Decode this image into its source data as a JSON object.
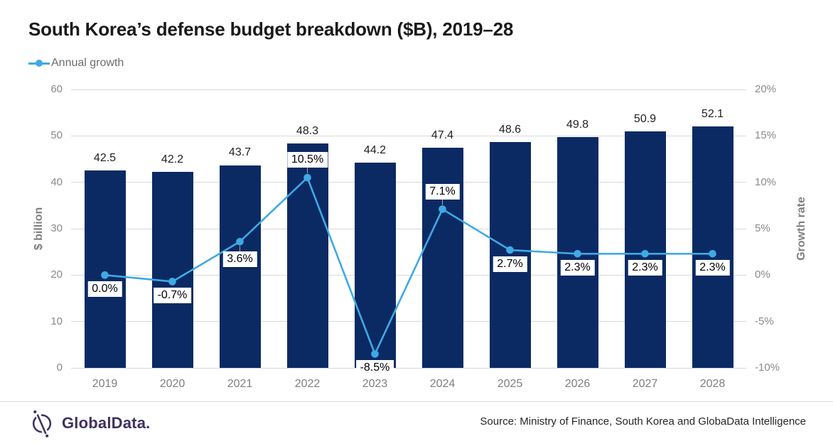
{
  "title": "South Korea’s defense budget breakdown ($B), 2019–28",
  "legend": {
    "label": "Annual growth"
  },
  "chart_data": {
    "type": "bar",
    "subtype": "combo-bar-line",
    "categories": [
      "2019",
      "2020",
      "2021",
      "2022",
      "2023",
      "2024",
      "2025",
      "2026",
      "2027",
      "2028"
    ],
    "series": [
      {
        "name": "Defense budget ($B)",
        "type": "bar",
        "values": [
          42.5,
          42.2,
          43.7,
          48.3,
          44.2,
          47.4,
          48.6,
          49.8,
          50.9,
          52.1
        ],
        "data_labels": [
          "42.5",
          "42.2",
          "43.7",
          "48.3",
          "44.2",
          "47.4",
          "48.6",
          "49.8",
          "50.9",
          "52.1"
        ],
        "color": "#0b2a63",
        "axis": "left"
      },
      {
        "name": "Annual growth",
        "type": "line",
        "values": [
          0.0,
          -0.7,
          3.6,
          10.5,
          -8.5,
          7.1,
          2.7,
          2.3,
          2.3,
          2.3
        ],
        "data_labels": [
          "0.0%",
          "-0.7%",
          "3.6%",
          "10.5%",
          "-8.5%",
          "7.1%",
          "2.7%",
          "2.3%",
          "2.3%",
          "2.3%"
        ],
        "color": "#3fa9e5",
        "axis": "right",
        "label_placement": [
          "below",
          "below",
          "below",
          "above",
          "below",
          "above",
          "below",
          "below",
          "below",
          "below"
        ],
        "label_leader": [
          false,
          false,
          true,
          true,
          false,
          true,
          false,
          false,
          false,
          false
        ]
      }
    ],
    "left_axis": {
      "title": "$ billion",
      "min": 0,
      "max": 60,
      "ticks": [
        "0",
        "10",
        "20",
        "30",
        "40",
        "50",
        "60"
      ]
    },
    "right_axis": {
      "title": "Growth rate",
      "min": -10,
      "max": 20,
      "ticks": [
        "-10%",
        "-5%",
        "0%",
        "5%",
        "10%",
        "15%",
        "20%"
      ]
    },
    "grid": true,
    "legend_position": "top-left",
    "gridline_color": "#d9d9d9",
    "leader_color": "#a6a6a6"
  },
  "footer": {
    "logo_text": "GlobalData.",
    "source": "Source: Ministry of Finance, South Korea and GlobaData Intelligence"
  }
}
